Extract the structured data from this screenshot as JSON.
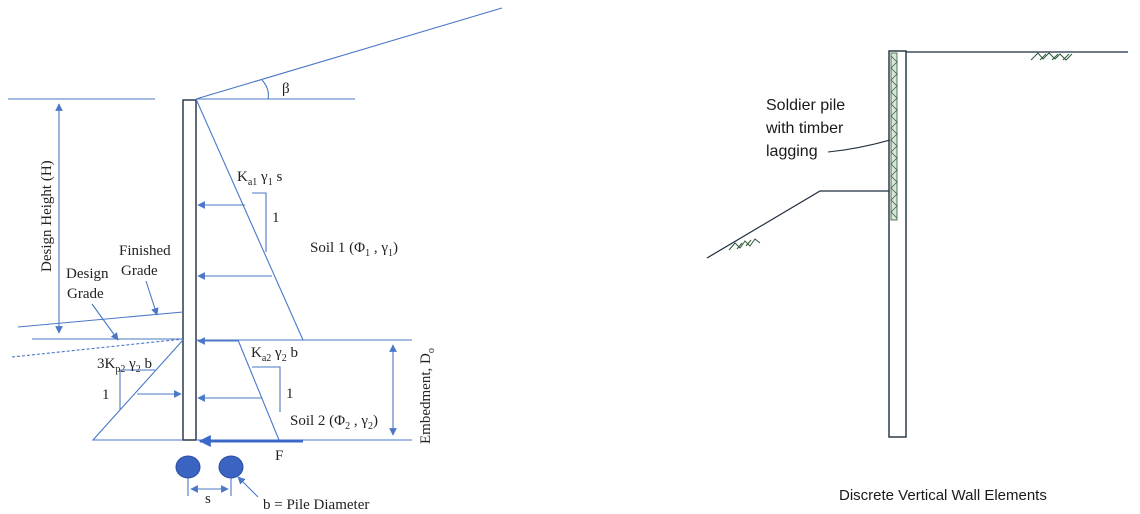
{
  "left_figure": {
    "labels": {
      "beta": "β",
      "design_height": "Design Height (H)",
      "finished_grade_line1": "Finished",
      "finished_grade_line2": "Grade",
      "design_grade_line1": "Design",
      "design_grade_line2": "Grade",
      "ka1_base": "K",
      "ka1_sub": "a1",
      "ka1_rest": " γ",
      "ka1_gsub": "1",
      "ka1_s": " s",
      "soil1_prefix": "Soil 1 (Φ",
      "soil1_sub1": "1",
      "soil1_mid": " , γ",
      "soil1_sub2": "1",
      "soil1_suffix": ")",
      "ka2_base": "K",
      "ka2_sub": "a2",
      "ka2_rest": " γ",
      "ka2_gsub": "2",
      "ka2_b": " b",
      "soil2_prefix": "Soil 2 (Φ",
      "soil2_sub1": "2",
      "soil2_mid": " , γ",
      "soil2_sub2": "2",
      "soil2_suffix": ")",
      "kp2_base": "3K",
      "kp2_sub": "p2",
      "kp2_rest": " γ",
      "kp2_gsub": "2",
      "kp2_b": " b",
      "slope_one_a": "1",
      "slope_one_b": "1",
      "slope_one_c": "1",
      "embedment_base": "Embedment, D",
      "embedment_sub": "o",
      "force_f": "F",
      "spacing_s": "s",
      "pile_diameter": "b = Pile Diameter"
    },
    "colors": {
      "line_blue": "#4a78c6",
      "pile_fill": "#3a63c2",
      "force_arrow": "#3b68c9"
    }
  },
  "right_figure": {
    "labels": {
      "soldier_pile_line1": "Soldier pile",
      "soldier_pile_line2": "with timber",
      "soldier_pile_line3": "lagging",
      "caption": "Discrete Vertical Wall Elements"
    },
    "colors": {
      "line_dark": "#1f2d3d",
      "lagging": "#2e5a3a"
    }
  }
}
